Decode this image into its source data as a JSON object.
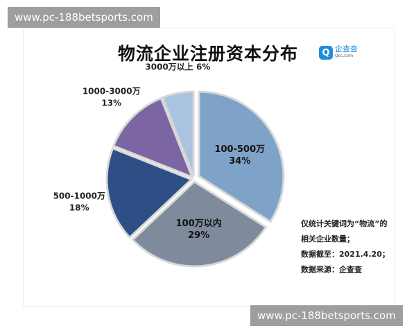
{
  "watermark": "www.pc-188betsports.com",
  "logo": {
    "mark": "Q",
    "name": "企查查",
    "sub": "Qcc.com"
  },
  "note": [
    "仅统计关键词为“物流”的相关企业数量；",
    "数据截至：2021.4.20；",
    "数据来源：企查查"
  ],
  "chart_data": {
    "type": "pie",
    "title": "物流企业注册资本分布",
    "start": "12 o'clock, clockwise",
    "slices": [
      {
        "label": "100-500万",
        "value": 34,
        "text": "34%",
        "color": "#7fa3c8"
      },
      {
        "label": "100万以内",
        "value": 29,
        "text": "29%",
        "color": "#7f8a9c"
      },
      {
        "label": "500-1000万",
        "value": 18,
        "text": "18%",
        "color": "#2e4e86"
      },
      {
        "label": "1000-3000万",
        "value": 13,
        "text": "13%",
        "color": "#7b66a3"
      },
      {
        "label": "3000万以上",
        "value": 6,
        "text": "6%",
        "color": "#a9c3e0"
      }
    ]
  }
}
